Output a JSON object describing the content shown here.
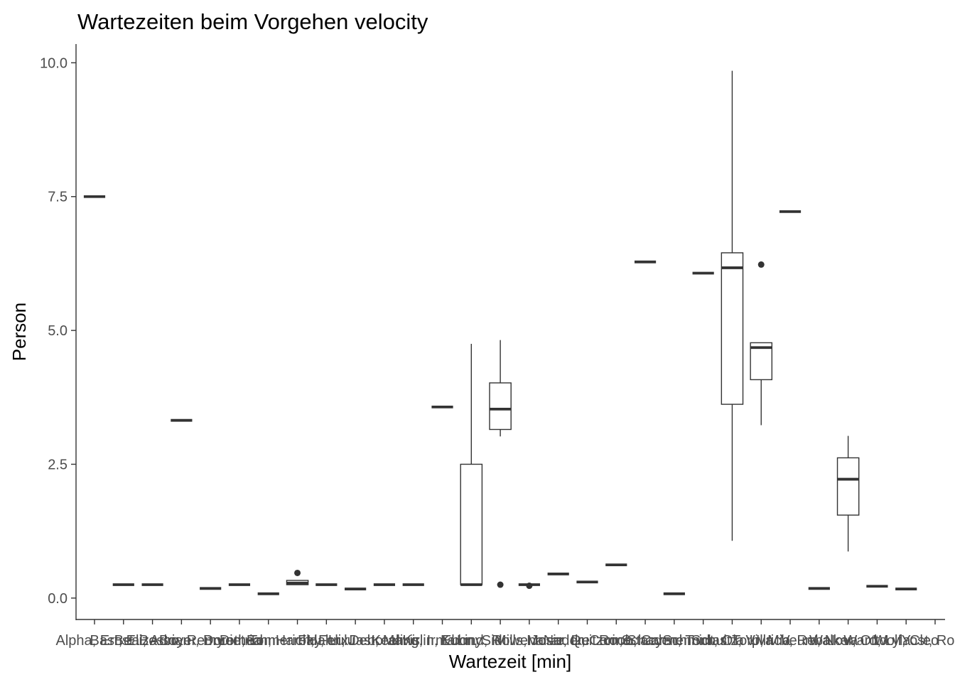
{
  "chart_data": {
    "type": "boxplot",
    "title": "Wartezeiten beim Vorgehen velocity",
    "xlabel": "Wartezeit [min]",
    "ylabel": "Person",
    "ylim": [
      -0.4,
      10.35
    ],
    "y_ticks": [
      0.0,
      2.5,
      5.0,
      7.5,
      10.0
    ],
    "y_tick_labels": [
      "0.0",
      "2.5",
      "5.0",
      "7.5",
      "10.0"
    ],
    "grid": false,
    "line_color": "#333333",
    "categories": [
      "Alpha, Ernst",
      "Bast, Eliza",
      "Beal, Adrian",
      "Bosco, Remy",
      "Boyer, Dorothea",
      "Bruen, Tom",
      "Dietrich, Harold",
      "Emmerich, Felix",
      "Fay, Lulu",
      "Hahn, Deborah",
      "Jast, Mavis",
      "Keeling, Irma",
      "Kirlin, Ebony",
      "Kuhn, Sid",
      "Lind, Rowena",
      "Mills, Josie",
      "Morar, Ike",
      "Nader, Corine",
      "Quitzon, Stacy",
      "Roob, Carmen",
      "Schaden, Tomas",
      "Schmidt, Ola",
      "Schultz, Viva",
      "Torp, Mia",
      "Ullrich, Reba",
      "Veum, Nova",
      "Walker, Otto",
      "Ward, Lyla",
      "Wolf, Cleo",
      "Yost, Ross"
    ],
    "boxes": [
      {
        "min": 7.5,
        "q1": 7.5,
        "median": 7.5,
        "q3": 7.5,
        "max": 7.5,
        "outliers": []
      },
      {
        "min": 0.25,
        "q1": 0.25,
        "median": 0.25,
        "q3": 0.25,
        "max": 0.25,
        "outliers": []
      },
      {
        "min": 0.25,
        "q1": 0.25,
        "median": 0.25,
        "q3": 0.25,
        "max": 0.25,
        "outliers": []
      },
      {
        "min": 3.32,
        "q1": 3.32,
        "median": 3.32,
        "q3": 3.32,
        "max": 3.32,
        "outliers": []
      },
      {
        "min": 0.18,
        "q1": 0.18,
        "median": 0.18,
        "q3": 0.18,
        "max": 0.18,
        "outliers": []
      },
      {
        "min": 0.25,
        "q1": 0.25,
        "median": 0.25,
        "q3": 0.25,
        "max": 0.25,
        "outliers": []
      },
      {
        "min": 0.08,
        "q1": 0.08,
        "median": 0.08,
        "q3": 0.08,
        "max": 0.08,
        "outliers": []
      },
      {
        "min": 0.25,
        "q1": 0.25,
        "median": 0.28,
        "q3": 0.33,
        "max": 0.33,
        "outliers": [
          0.47
        ]
      },
      {
        "min": 0.25,
        "q1": 0.25,
        "median": 0.25,
        "q3": 0.25,
        "max": 0.25,
        "outliers": []
      },
      {
        "min": 0.17,
        "q1": 0.17,
        "median": 0.17,
        "q3": 0.17,
        "max": 0.17,
        "outliers": []
      },
      {
        "min": 0.25,
        "q1": 0.25,
        "median": 0.25,
        "q3": 0.25,
        "max": 0.25,
        "outliers": []
      },
      {
        "min": 0.25,
        "q1": 0.25,
        "median": 0.25,
        "q3": 0.25,
        "max": 0.25,
        "outliers": []
      },
      {
        "min": 3.57,
        "q1": 3.57,
        "median": 3.57,
        "q3": 3.57,
        "max": 3.57,
        "outliers": []
      },
      {
        "min": 0.25,
        "q1": 0.25,
        "median": 0.25,
        "q3": 2.5,
        "max": 4.75,
        "outliers": []
      },
      {
        "min": 3.02,
        "q1": 3.15,
        "median": 3.53,
        "q3": 4.02,
        "max": 4.82,
        "outliers": [
          0.25
        ]
      },
      {
        "min": 0.25,
        "q1": 0.25,
        "median": 0.25,
        "q3": 0.25,
        "max": 0.25,
        "outliers": [
          0.23
        ]
      },
      {
        "min": 0.45,
        "q1": 0.45,
        "median": 0.45,
        "q3": 0.45,
        "max": 0.45,
        "outliers": []
      },
      {
        "min": 0.3,
        "q1": 0.3,
        "median": 0.3,
        "q3": 0.3,
        "max": 0.3,
        "outliers": []
      },
      {
        "min": 0.62,
        "q1": 0.62,
        "median": 0.62,
        "q3": 0.62,
        "max": 0.62,
        "outliers": []
      },
      {
        "min": 6.28,
        "q1": 6.28,
        "median": 6.28,
        "q3": 6.28,
        "max": 6.28,
        "outliers": []
      },
      {
        "min": 0.08,
        "q1": 0.08,
        "median": 0.08,
        "q3": 0.08,
        "max": 0.08,
        "outliers": []
      },
      {
        "min": 6.07,
        "q1": 6.07,
        "median": 6.07,
        "q3": 6.07,
        "max": 6.07,
        "outliers": []
      },
      {
        "min": 1.07,
        "q1": 3.62,
        "median": 6.17,
        "q3": 6.45,
        "max": 9.85,
        "outliers": []
      },
      {
        "min": 3.23,
        "q1": 4.08,
        "median": 4.68,
        "q3": 4.77,
        "max": 4.77,
        "outliers": [
          6.23
        ]
      },
      {
        "min": 7.22,
        "q1": 7.22,
        "median": 7.22,
        "q3": 7.22,
        "max": 7.22,
        "outliers": []
      },
      {
        "min": 0.18,
        "q1": 0.18,
        "median": 0.18,
        "q3": 0.18,
        "max": 0.18,
        "outliers": []
      },
      {
        "min": 0.87,
        "q1": 1.55,
        "median": 2.22,
        "q3": 2.62,
        "max": 3.03,
        "outliers": []
      },
      {
        "min": 0.22,
        "q1": 0.22,
        "median": 0.22,
        "q3": 0.22,
        "max": 0.22,
        "outliers": []
      },
      {
        "min": 0.17,
        "q1": 0.17,
        "median": 0.17,
        "q3": 0.17,
        "max": 0.17,
        "outliers": []
      },
      {
        "min": null,
        "q1": null,
        "median": null,
        "q3": null,
        "max": null,
        "outliers": []
      }
    ]
  }
}
